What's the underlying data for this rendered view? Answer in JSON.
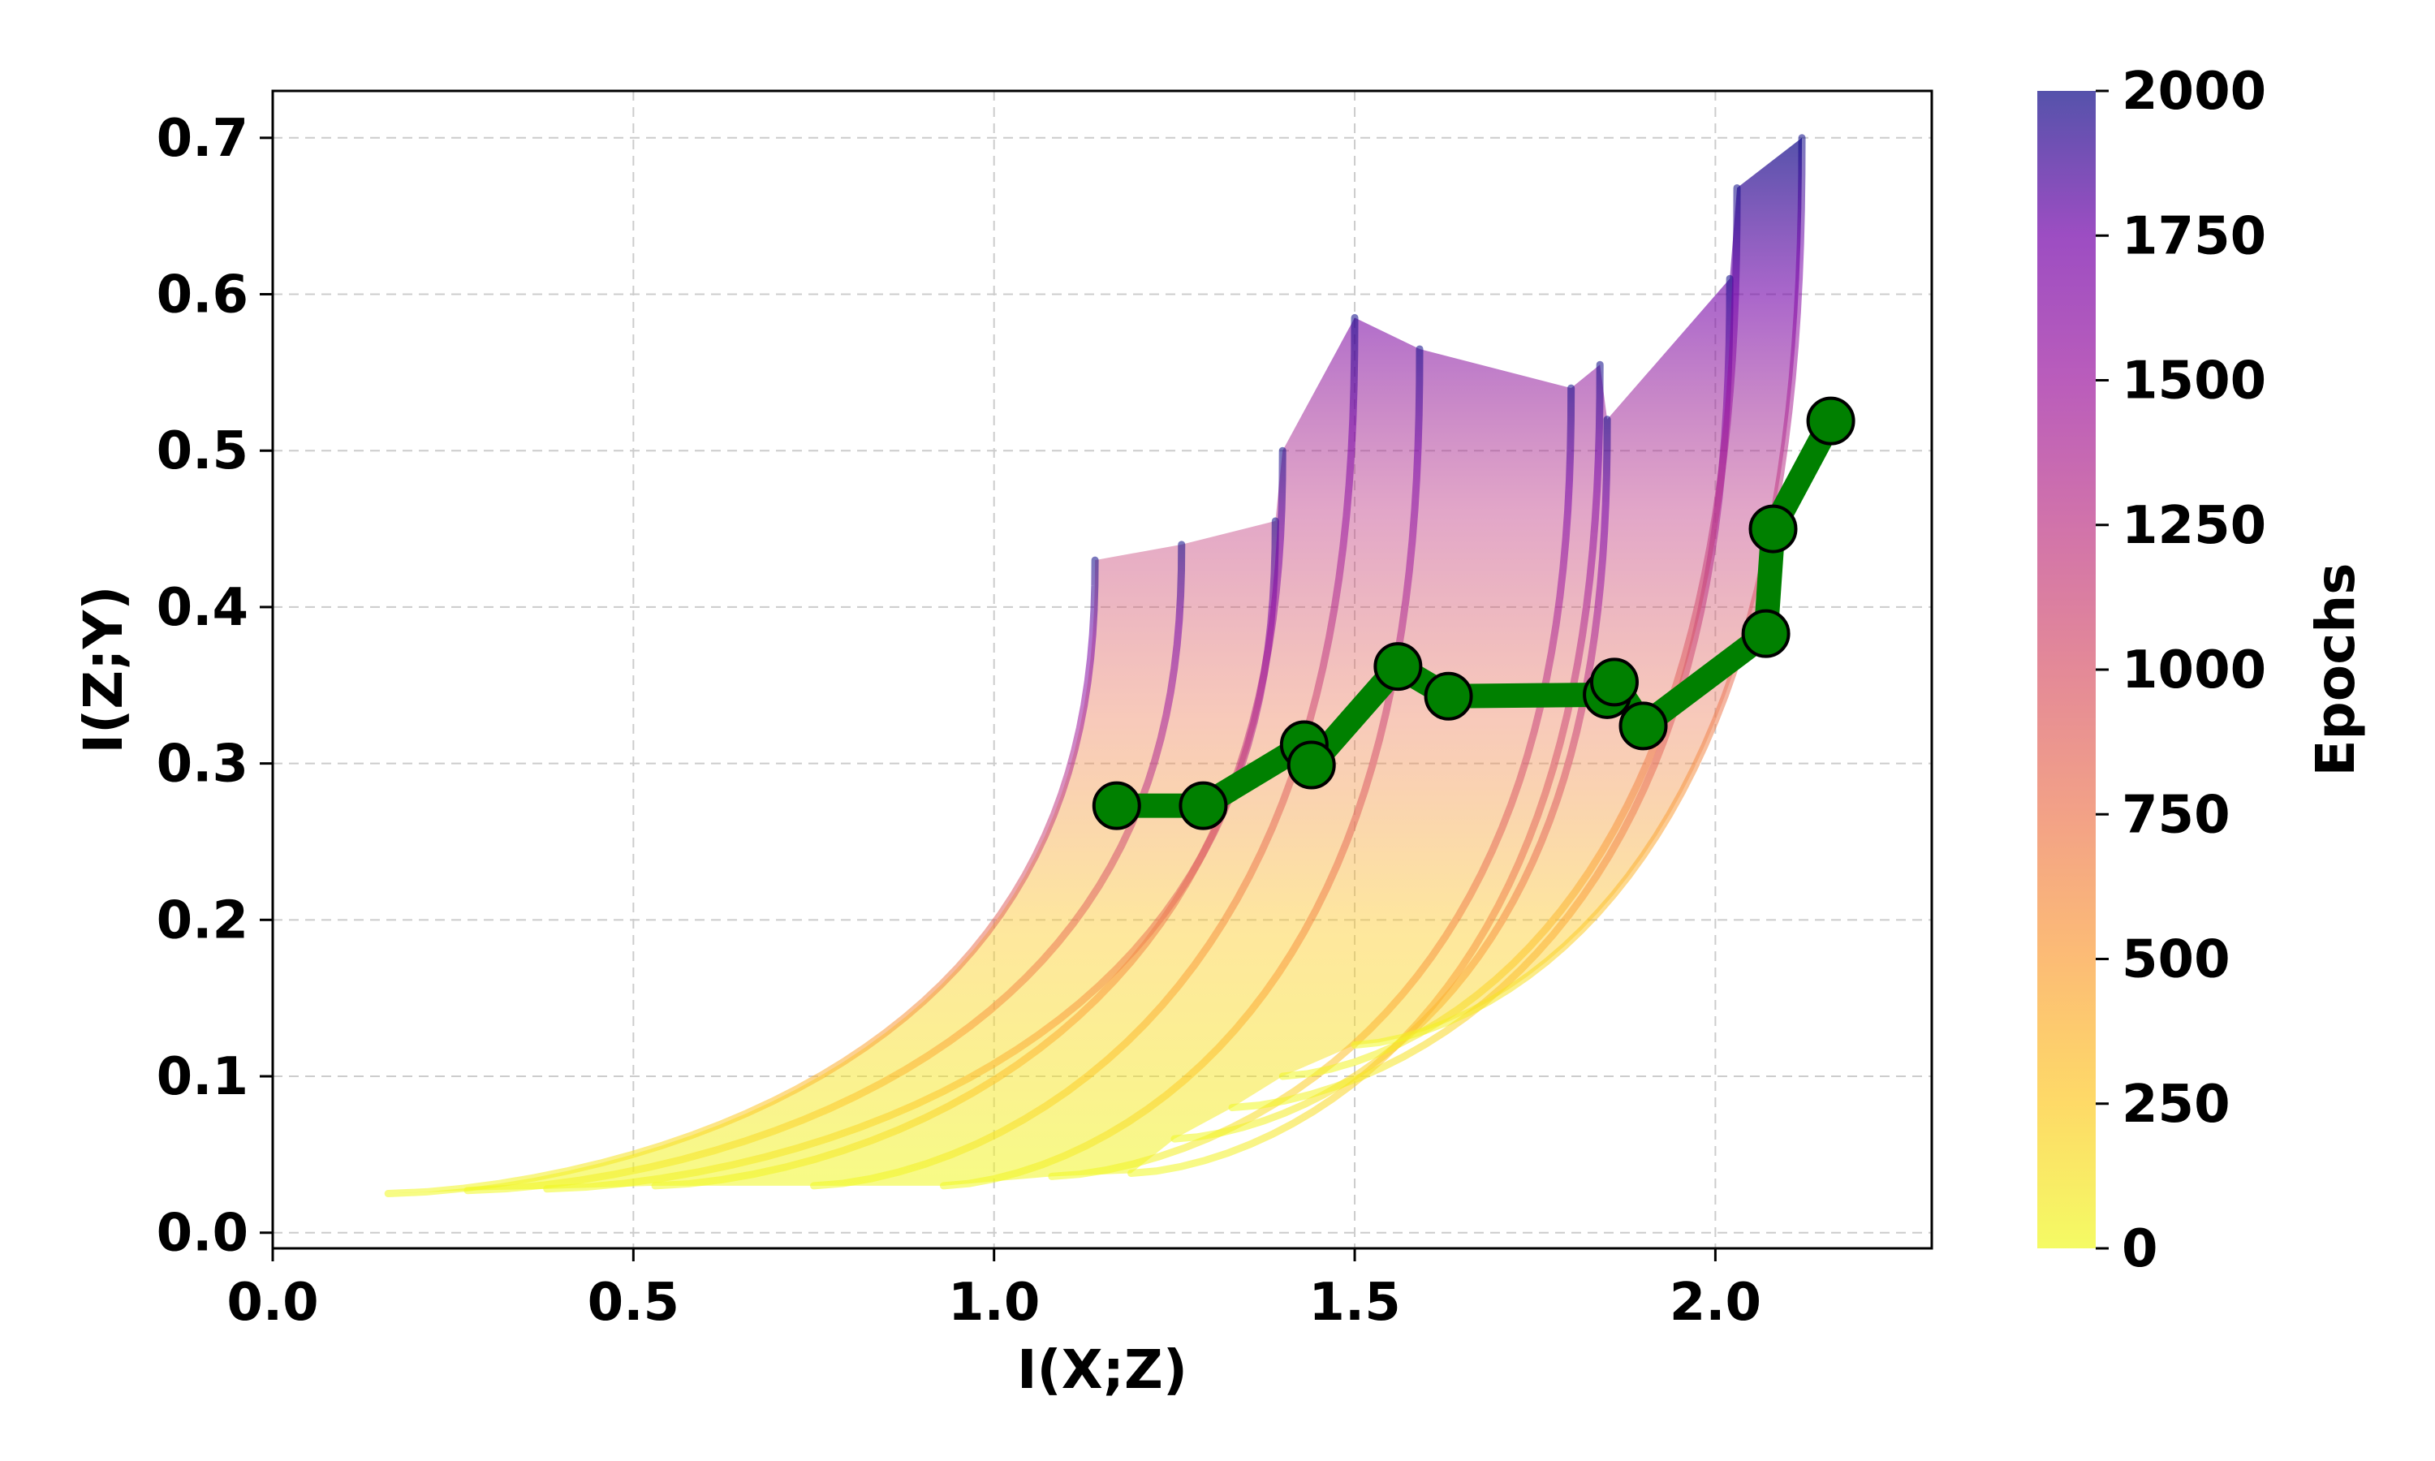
{
  "chart_data": {
    "type": "line",
    "title": "",
    "xlabel": "I(X;Z)",
    "ylabel": "I(Z;Y)",
    "xlim": [
      0.0,
      2.3
    ],
    "ylim": [
      -0.01,
      0.73
    ],
    "xticks": [
      "0.0",
      "0.5",
      "1.0",
      "1.5",
      "2.0"
    ],
    "xtick_values": [
      0.0,
      0.5,
      1.0,
      1.5,
      2.0
    ],
    "yticks": [
      "0.0",
      "0.1",
      "0.2",
      "0.3",
      "0.4",
      "0.5",
      "0.6",
      "0.7"
    ],
    "ytick_values": [
      0.0,
      0.1,
      0.2,
      0.3,
      0.4,
      0.5,
      0.6,
      0.7
    ],
    "grid": true,
    "colorbar": {
      "label": "Epochs",
      "colormap": "plasma_r",
      "range": [
        0,
        2000
      ],
      "ticks": [
        "0",
        "250",
        "500",
        "750",
        "1000",
        "1250",
        "1500",
        "1750",
        "2000"
      ],
      "tick_values": [
        0,
        250,
        500,
        750,
        1000,
        1250,
        1500,
        1750,
        2000
      ]
    },
    "trajectories": [
      {
        "start": [
          0.16,
          0.025
        ],
        "end": [
          1.14,
          0.43
        ]
      },
      {
        "start": [
          0.27,
          0.027
        ],
        "end": [
          1.26,
          0.44
        ]
      },
      {
        "start": [
          0.38,
          0.028
        ],
        "end": [
          1.39,
          0.455
        ]
      },
      {
        "start": [
          0.53,
          0.03
        ],
        "end": [
          1.4,
          0.5
        ]
      },
      {
        "start": [
          0.75,
          0.03
        ],
        "end": [
          1.5,
          0.585
        ]
      },
      {
        "start": [
          0.93,
          0.03
        ],
        "end": [
          1.59,
          0.565
        ]
      },
      {
        "start": [
          1.08,
          0.036
        ],
        "end": [
          1.8,
          0.54
        ]
      },
      {
        "start": [
          1.19,
          0.038
        ],
        "end": [
          1.84,
          0.555
        ]
      },
      {
        "start": [
          1.25,
          0.06
        ],
        "end": [
          1.85,
          0.52
        ]
      },
      {
        "start": [
          1.33,
          0.08
        ],
        "end": [
          2.02,
          0.61
        ]
      },
      {
        "start": [
          1.4,
          0.1
        ],
        "end": [
          2.03,
          0.668
        ]
      },
      {
        "start": [
          1.5,
          0.12
        ],
        "end": [
          2.12,
          0.7
        ]
      }
    ],
    "series": [
      {
        "x": [
          1.17,
          1.29,
          1.43,
          1.44,
          1.56,
          1.63,
          1.85,
          1.86,
          1.9,
          2.07,
          2.08,
          2.16
        ],
        "y": [
          0.273,
          0.273,
          0.312,
          0.299,
          0.362,
          0.343,
          0.344,
          0.352,
          0.324,
          0.383,
          0.45,
          0.519
        ],
        "color": "#008000"
      }
    ]
  }
}
